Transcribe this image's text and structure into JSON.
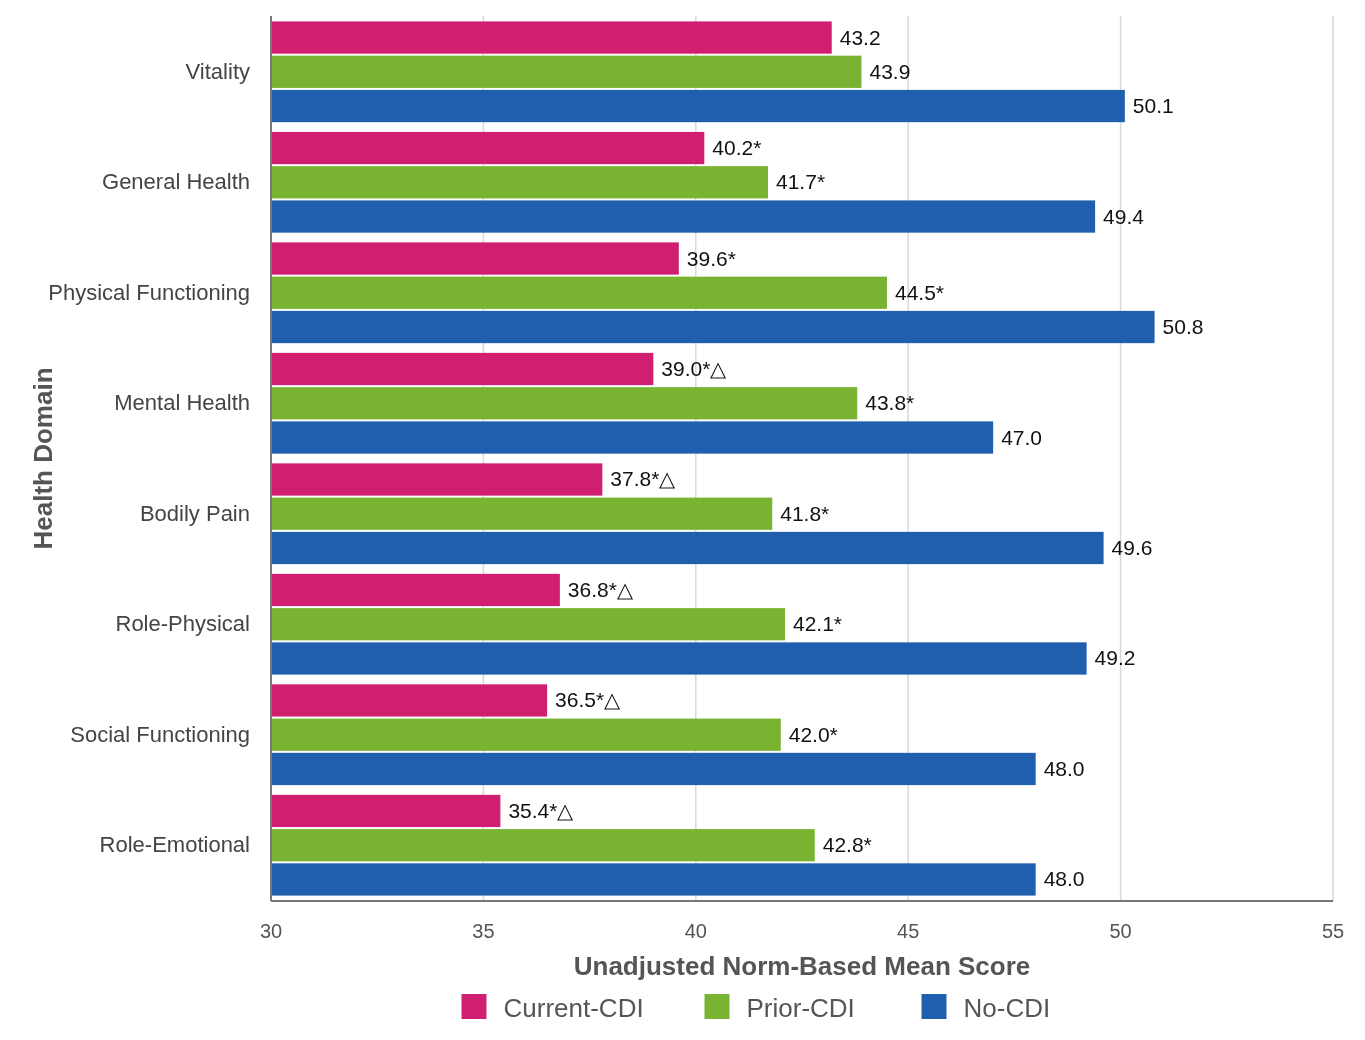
{
  "chart_data": {
    "type": "bar",
    "orientation": "horizontal",
    "xlabel": "Unadjusted Norm-Based Mean Score",
    "ylabel": "Health Domain",
    "categories": [
      "Vitality",
      "General Health",
      "Physical Functioning",
      "Mental Health",
      "Bodily Pain",
      "Role-Physical",
      "Social Functioning",
      "Role-Emotional"
    ],
    "series": [
      {
        "name": "Current-CDI",
        "color": "#d01f70",
        "values": [
          43.2,
          40.2,
          39.6,
          39.0,
          37.8,
          36.8,
          36.5,
          35.4
        ],
        "value_labels": [
          "43.2",
          "40.2*",
          "39.6*",
          "39.0*△",
          "37.8*△",
          "36.8*△",
          "36.5*△",
          "35.4*△"
        ]
      },
      {
        "name": "Prior-CDI",
        "color": "#78b432",
        "values": [
          43.9,
          41.7,
          44.5,
          43.8,
          41.8,
          42.1,
          42.0,
          42.8
        ],
        "value_labels": [
          "43.9",
          "41.7*",
          "44.5*",
          "43.8*",
          "41.8*",
          "42.1*",
          "42.0*",
          "42.8*"
        ]
      },
      {
        "name": "No-CDI",
        "color": "#1f5fad",
        "values": [
          50.1,
          49.4,
          50.8,
          47.0,
          49.6,
          49.2,
          48.0,
          48.0
        ],
        "value_labels": [
          "50.1",
          "49.4",
          "50.8",
          "47.0",
          "49.6",
          "49.2",
          "48.0",
          "48.0"
        ]
      }
    ],
    "xlim": [
      30,
      55
    ],
    "xticks": [
      30,
      35,
      40,
      45,
      50,
      55
    ],
    "grid": "x",
    "legend": "bottom"
  }
}
